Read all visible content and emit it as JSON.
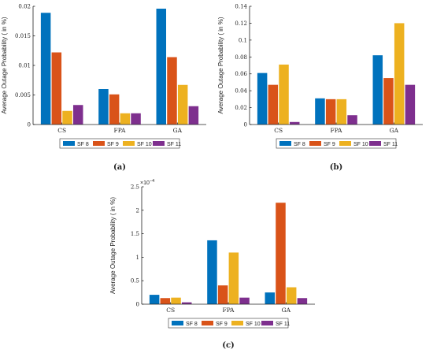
{
  "chart_data": [
    {
      "type": "bar",
      "panel_label": "(a)",
      "categories": [
        "CS",
        "FPA",
        "GA"
      ],
      "ylabel": "Average Outage Probability ( in %)",
      "ylim": [
        0,
        0.02
      ],
      "yticks": [
        "0",
        "0.005",
        "0.01",
        "0.015",
        "0.02"
      ],
      "ytick_values": [
        0,
        0.005,
        0.01,
        0.015,
        0.02
      ],
      "legend_position": "bottom",
      "series": [
        {
          "name": "SF 8",
          "values": [
            0.0189,
            0.006,
            0.0196
          ]
        },
        {
          "name": "SF 9",
          "values": [
            0.0122,
            0.0051,
            0.0114
          ]
        },
        {
          "name": "SF 10",
          "values": [
            0.0023,
            0.0019,
            0.0067
          ]
        },
        {
          "name": "SF 11",
          "values": [
            0.0033,
            0.0019,
            0.0031
          ]
        }
      ]
    },
    {
      "type": "bar",
      "panel_label": "(b)",
      "categories": [
        "CS",
        "FPA",
        "GA"
      ],
      "ylabel": "Average Outage Probability ( in %)",
      "ylim": [
        0,
        0.14
      ],
      "yticks": [
        "0",
        "0.02",
        "0.04",
        "0.06",
        "0.08",
        "0.1",
        "0.12",
        "0.14"
      ],
      "ytick_values": [
        0,
        0.02,
        0.04,
        0.06,
        0.08,
        0.1,
        0.12,
        0.14
      ],
      "legend_position": "bottom",
      "series": [
        {
          "name": "SF 8",
          "values": [
            0.061,
            0.031,
            0.082
          ]
        },
        {
          "name": "SF 9",
          "values": [
            0.047,
            0.03,
            0.055
          ]
        },
        {
          "name": "SF 10",
          "values": [
            0.071,
            0.03,
            0.12
          ]
        },
        {
          "name": "SF 11",
          "values": [
            0.003,
            0.011,
            0.047
          ]
        }
      ]
    },
    {
      "type": "bar",
      "panel_label": "(c)",
      "categories": [
        "CS",
        "FPA",
        "GA"
      ],
      "ylabel": "Average Outage Probability ( in %)",
      "multiplier": "×10",
      "multiplier_exp": "−4",
      "ylim": [
        0,
        2.5
      ],
      "yticks": [
        "0",
        "0.5",
        "1",
        "1.5",
        "2",
        "2.5"
      ],
      "ytick_values": [
        0,
        0.5,
        1,
        1.5,
        2,
        2.5
      ],
      "legend_position": "bottom",
      "series": [
        {
          "name": "SF 8",
          "values": [
            0.2,
            1.36,
            0.25
          ]
        },
        {
          "name": "SF 9",
          "values": [
            0.13,
            0.4,
            2.16
          ]
        },
        {
          "name": "SF 10",
          "values": [
            0.14,
            1.1,
            0.36
          ]
        },
        {
          "name": "SF 11",
          "values": [
            0.04,
            0.14,
            0.13
          ]
        }
      ]
    }
  ],
  "colors": [
    "#0072bd",
    "#d95319",
    "#edb120",
    "#7e2f8e"
  ]
}
